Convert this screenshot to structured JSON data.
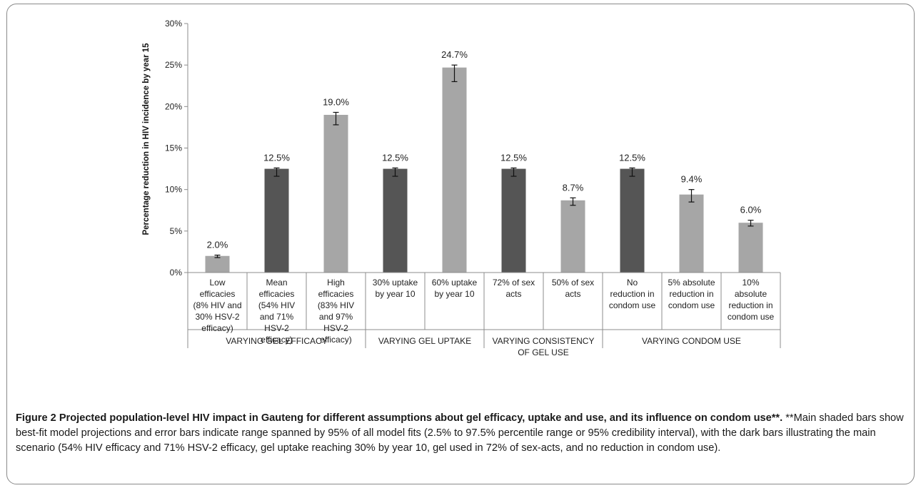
{
  "figure": {
    "caption_title": "Figure 2 Projected population-level HIV impact in Gauteng for different assumptions about gel efficacy, uptake and use, and its influence on condom use**.",
    "caption_text": " **Main shaded bars show best-fit model projections and error bars indicate range spanned by 95% of all model fits (2.5% to 97.5% percentile range or 95% credibility interval), with the dark bars illustrating the main scenario (54% HIV efficacy and 71% HSV-2 efficacy, gel uptake reaching 30% by year 10, gel used in 72% of sex-acts, and no reduction in condom use)."
  },
  "chart_data": {
    "type": "bar",
    "title": "",
    "ylabel": "Percentage reduction in HIV incidence by year 15",
    "xlabel": "",
    "ylim": [
      0,
      30
    ],
    "yticks": [
      "0%",
      "5%",
      "10%",
      "15%",
      "20%",
      "25%",
      "30%"
    ],
    "ytick_values": [
      0,
      5,
      10,
      15,
      20,
      25,
      30
    ],
    "grid": false,
    "legend": "none",
    "colors": {
      "main": "#555555",
      "other": "#a6a6a6",
      "axis": "#8c8c8c"
    },
    "categories": [
      [
        "Low",
        "efficacies",
        "(8% HIV and",
        "30% HSV-2",
        "efficacy)"
      ],
      [
        "Mean",
        "efficacies",
        "(54% HIV",
        "and 71%",
        "HSV-2",
        "efficacy)"
      ],
      [
        "High",
        "efficacies",
        "(83% HIV",
        "and 97%",
        "HSV-2",
        "efficacy)"
      ],
      [
        "30% uptake",
        "by year 10"
      ],
      [
        "60% uptake",
        "by year 10"
      ],
      [
        "72% of sex",
        "acts"
      ],
      [
        "50% of sex",
        "acts"
      ],
      [
        "No",
        "reduction in",
        "condom use"
      ],
      [
        "5% absolute",
        "reduction in",
        "condom use"
      ],
      [
        "10%",
        "absolute",
        "reduction in",
        "condom use"
      ]
    ],
    "values": [
      2.0,
      12.5,
      19.0,
      12.5,
      24.7,
      12.5,
      8.7,
      12.5,
      9.4,
      6.0
    ],
    "value_labels": [
      "2.0%",
      "12.5%",
      "19.0%",
      "12.5%",
      "24.7%",
      "12.5%",
      "8.7%",
      "12.5%",
      "9.4%",
      "6.0%"
    ],
    "error_low": [
      1.8,
      11.6,
      17.8,
      11.6,
      23.0,
      11.6,
      8.1,
      11.6,
      8.5,
      5.6
    ],
    "error_high": [
      2.1,
      12.6,
      19.3,
      12.6,
      25.0,
      12.6,
      9.0,
      12.6,
      10.0,
      6.3
    ],
    "main_scenario": [
      false,
      true,
      false,
      true,
      false,
      true,
      false,
      true,
      false,
      false
    ],
    "groups": [
      {
        "label": [
          "VARYING GEL EFFICACY"
        ],
        "start": 0,
        "end": 2
      },
      {
        "label": [
          "VARYING GEL UPTAKE"
        ],
        "start": 3,
        "end": 4
      },
      {
        "label": [
          "VARYING CONSISTENCY",
          "OF GEL USE"
        ],
        "start": 5,
        "end": 6
      },
      {
        "label": [
          "VARYING CONDOM USE"
        ],
        "start": 7,
        "end": 9
      }
    ]
  }
}
